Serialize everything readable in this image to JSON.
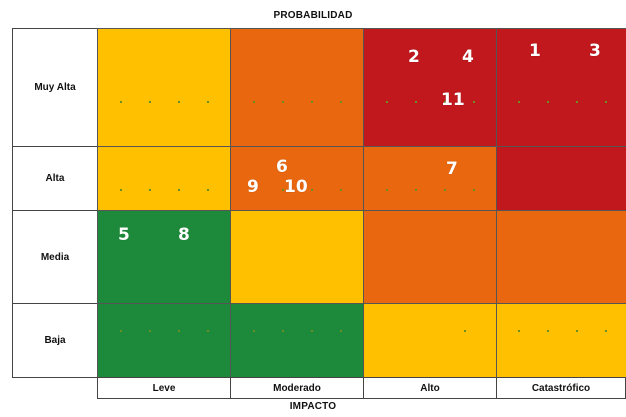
{
  "titles": {
    "probability": "PROBABILIDAD",
    "impact": "IMPACTO"
  },
  "rows": [
    "Muy Alta",
    "Alta",
    "Media",
    "Baja"
  ],
  "columns": [
    "Leve",
    "Moderado",
    "Alto",
    "Catastrófico"
  ],
  "colors": {
    "yellow": "#FFC000",
    "orange": "#E8670F",
    "red": "#C0181D",
    "green": "#1C8A3A"
  },
  "matrix": [
    [
      "yellow",
      "orange",
      "red",
      "red"
    ],
    [
      "yellow",
      "orange",
      "orange",
      "red"
    ],
    [
      "green",
      "yellow",
      "orange",
      "orange"
    ],
    [
      "green",
      "green",
      "yellow",
      "yellow"
    ]
  ],
  "risks": {
    "r1": "1",
    "r2": "2",
    "r3": "3",
    "r4": "4",
    "r5": "5",
    "r6": "6",
    "r7": "7",
    "r8": "8",
    "r9": "9",
    "r10": "10",
    "r11": "11"
  }
}
